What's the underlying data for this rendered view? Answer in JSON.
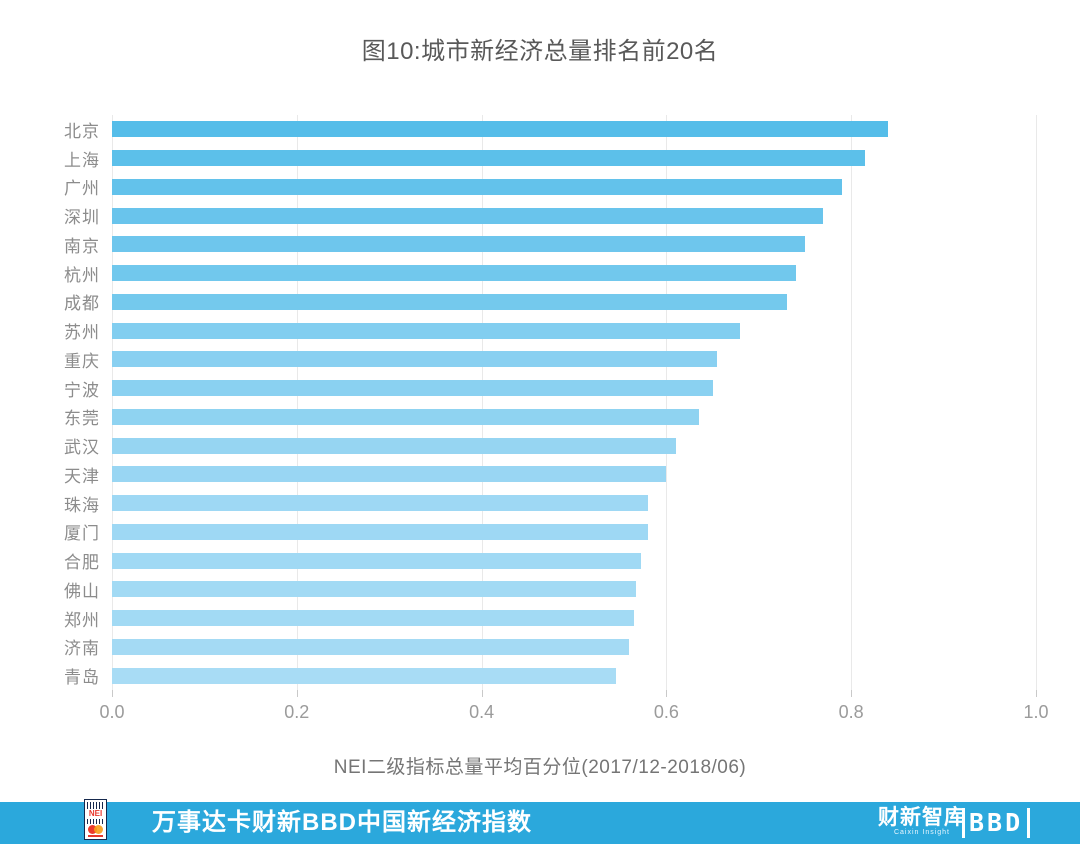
{
  "title": "图10:城市新经济总量排名前20名",
  "chart_data": {
    "type": "bar",
    "orientation": "horizontal",
    "title": "图10:城市新经济总量排名前20名",
    "categories": [
      "北京",
      "上海",
      "广州",
      "深圳",
      "南京",
      "杭州",
      "成都",
      "苏州",
      "重庆",
      "宁波",
      "东莞",
      "武汉",
      "天津",
      "珠海",
      "厦门",
      "合肥",
      "佛山",
      "郑州",
      "济南",
      "青岛"
    ],
    "values": [
      0.84,
      0.815,
      0.79,
      0.77,
      0.75,
      0.74,
      0.73,
      0.68,
      0.655,
      0.65,
      0.635,
      0.61,
      0.6,
      0.58,
      0.58,
      0.572,
      0.567,
      0.565,
      0.56,
      0.545
    ],
    "xlabel": "NEI二级指标总量平均百分位(2017/12-2018/06)",
    "xlim": [
      0,
      1
    ],
    "xticks": [
      0,
      0.2,
      0.4,
      0.6,
      0.8,
      1.0
    ],
    "xtick_labels": [
      "0.0",
      "0.2",
      "0.4",
      "0.6",
      "0.8",
      "1.0"
    ],
    "grid": true,
    "legend": "none",
    "bar_color_high": "#55BDE9",
    "bar_color_low": "#A8DCF5"
  },
  "footer": {
    "band_color": "#2BA8DC",
    "title": "万事达卡财新BBD中国新经济指数",
    "nei_logo_text": "NEI",
    "caixin_logo_text": "财新智库",
    "caixin_logo_sub": "Caixin Insight",
    "bbd_logo_text": "BBD"
  }
}
